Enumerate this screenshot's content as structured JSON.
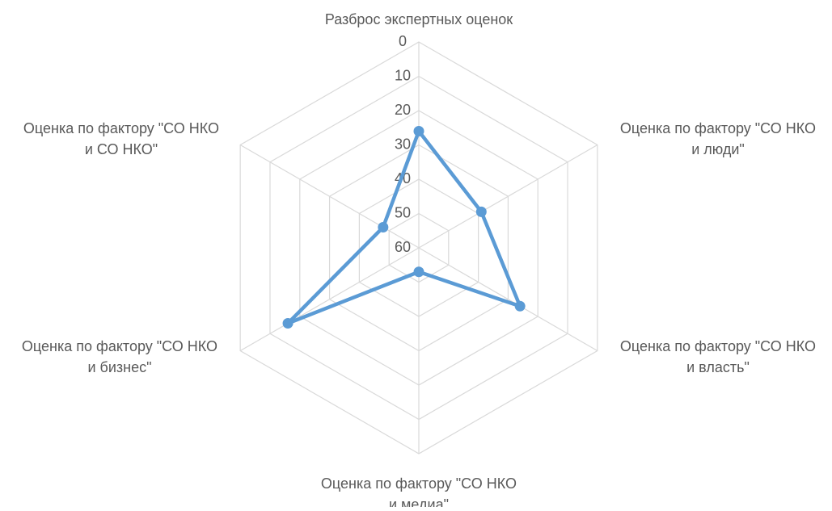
{
  "chart_data": {
    "type": "radar",
    "categories": [
      "Разброс экспертных оценок",
      "Оценка по фактору \"СО НКО\nи люди\"",
      "Оценка по фактору \"СО НКО\nи власть\"",
      "Оценка по фактору \"СО НКО\nи медиа\"",
      "Оценка по фактору \"СО НКО\nи бизнес\"",
      "Оценка по фактору \"СО НКО\nи СО НКО\""
    ],
    "values": [
      26,
      39,
      26,
      53,
      16,
      48
    ],
    "color": "#5b9bd5",
    "ylim": [
      0,
      60
    ],
    "yticks": [
      0,
      10,
      20,
      30,
      40,
      50,
      60
    ],
    "reverse": true,
    "grid": true
  }
}
